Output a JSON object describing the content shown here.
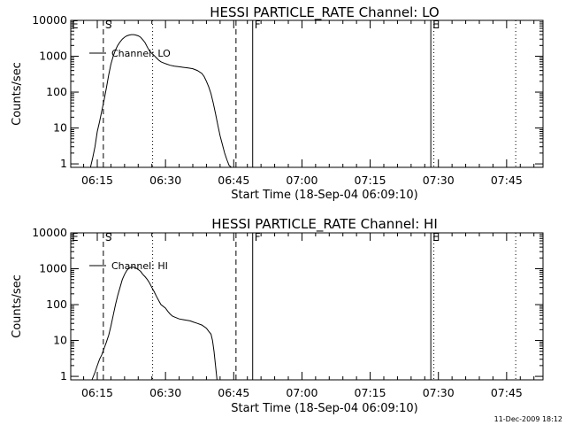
{
  "stamp": "11-Dec-2009 18:12",
  "chart_data": [
    {
      "type": "line",
      "title": "HESSI PARTICLE_RATE Channel: LO",
      "xlabel": "Start Time (18-Sep-04 06:09:10)",
      "ylabel": "Counts/sec",
      "yscale": "log",
      "xlim": [
        "06:09:10",
        "07:53:00"
      ],
      "ylim": [
        0.8,
        10000
      ],
      "xticks": [
        "06:15",
        "06:30",
        "06:45",
        "07:00",
        "07:15",
        "07:30",
        "07:45"
      ],
      "yticks": [
        "1",
        "10",
        "100",
        "1000",
        "10000"
      ],
      "legend": "top-left",
      "series": [
        {
          "name": "Channel: LO",
          "x": [
            "06:13:30",
            "06:14:00",
            "06:14:30",
            "06:15:00",
            "06:15:30",
            "06:16:00",
            "06:16:30",
            "06:17:00",
            "06:17:30",
            "06:18:00",
            "06:18:30",
            "06:19:00",
            "06:19:30",
            "06:20:00",
            "06:20:30",
            "06:21:00",
            "06:21:30",
            "06:22:00",
            "06:22:30",
            "06:23:00",
            "06:23:30",
            "06:24:00",
            "06:24:30",
            "06:25:00",
            "06:25:30",
            "06:26:00",
            "06:26:30",
            "06:27:00",
            "06:27:30",
            "06:28:00",
            "06:28:30",
            "06:29:00",
            "06:30:00",
            "06:31:00",
            "06:32:00",
            "06:33:00",
            "06:34:00",
            "06:35:00",
            "06:36:00",
            "06:37:00",
            "06:38:00",
            "06:38:30",
            "06:39:00",
            "06:39:30",
            "06:40:00",
            "06:40:30",
            "06:41:00",
            "06:41:30",
            "06:42:00",
            "06:42:30",
            "06:43:00",
            "06:43:30",
            "06:44:00",
            "06:44:30"
          ],
          "values": [
            0.8,
            1.5,
            3,
            8,
            15,
            30,
            60,
            130,
            300,
            600,
            1000,
            1500,
            2000,
            2500,
            3000,
            3400,
            3700,
            3900,
            4000,
            4000,
            3900,
            3700,
            3400,
            2900,
            2400,
            1800,
            1400,
            1200,
            1050,
            900,
            780,
            700,
            620,
            560,
            530,
            510,
            490,
            470,
            450,
            400,
            330,
            270,
            200,
            140,
            90,
            50,
            25,
            12,
            6,
            3.5,
            2,
            1.3,
            0.9,
            0.8
          ]
        }
      ],
      "markers": [
        {
          "label": "S",
          "time": "06:16:20",
          "style": "dashed"
        },
        {
          "label": "",
          "time": "06:27:10",
          "style": "dotted"
        },
        {
          "label": "",
          "time": "06:45:30",
          "style": "dashed"
        },
        {
          "label": "F",
          "time": "06:49:10",
          "style": "solid"
        },
        {
          "label": "E",
          "time": "07:28:20",
          "style": "solid"
        },
        {
          "label": "",
          "time": "07:29:00",
          "style": "dotted"
        },
        {
          "label": "",
          "time": "07:47:00",
          "style": "dotted"
        }
      ],
      "corner_letter": "E"
    },
    {
      "type": "line",
      "title": "HESSI PARTICLE_RATE Channel: HI",
      "xlabel": "Start Time (18-Sep-04 06:09:10)",
      "ylabel": "Counts/sec",
      "yscale": "log",
      "xlim": [
        "06:09:10",
        "07:53:00"
      ],
      "ylim": [
        0.8,
        10000
      ],
      "xticks": [
        "06:15",
        "06:30",
        "06:45",
        "07:00",
        "07:15",
        "07:30",
        "07:45"
      ],
      "yticks": [
        "1",
        "10",
        "100",
        "1000",
        "10000"
      ],
      "legend": "top-left",
      "series": [
        {
          "name": "Channel: HI",
          "x": [
            "06:13:50",
            "06:14:30",
            "06:15:00",
            "06:15:30",
            "06:16:00",
            "06:16:30",
            "06:17:00",
            "06:17:30",
            "06:18:00",
            "06:18:30",
            "06:19:00",
            "06:19:30",
            "06:20:00",
            "06:20:30",
            "06:21:00",
            "06:21:30",
            "06:22:00",
            "06:22:30",
            "06:23:00",
            "06:23:30",
            "06:24:00",
            "06:24:30",
            "06:25:00",
            "06:25:30",
            "06:26:00",
            "06:26:30",
            "06:27:00",
            "06:27:30",
            "06:28:00",
            "06:28:30",
            "06:29:00",
            "06:30:00",
            "06:30:30",
            "06:31:00",
            "06:31:30",
            "06:32:00",
            "06:33:00",
            "06:34:00",
            "06:35:00",
            "06:35:30",
            "06:36:00",
            "06:37:00",
            "06:38:00",
            "06:39:00",
            "06:39:30",
            "06:40:00",
            "06:40:20",
            "06:40:40",
            "06:41:00",
            "06:41:20"
          ],
          "values": [
            0.8,
            1.3,
            2,
            3,
            4,
            6,
            9,
            14,
            25,
            50,
            100,
            180,
            300,
            500,
            700,
            900,
            1050,
            1100,
            1100,
            1050,
            950,
            850,
            700,
            600,
            500,
            400,
            300,
            230,
            170,
            130,
            100,
            80,
            65,
            55,
            48,
            45,
            40,
            38,
            36,
            35,
            33,
            30,
            27,
            22,
            18,
            15,
            10,
            5,
            2,
            0.8
          ]
        }
      ],
      "markers": [
        {
          "label": "S",
          "time": "06:16:20",
          "style": "dashed"
        },
        {
          "label": "",
          "time": "06:27:10",
          "style": "dotted"
        },
        {
          "label": "",
          "time": "06:45:30",
          "style": "dashed"
        },
        {
          "label": "F",
          "time": "06:49:10",
          "style": "solid"
        },
        {
          "label": "E",
          "time": "07:28:20",
          "style": "solid"
        },
        {
          "label": "",
          "time": "07:29:00",
          "style": "dotted"
        },
        {
          "label": "",
          "time": "07:47:00",
          "style": "dotted"
        }
      ],
      "corner_letter": "E"
    }
  ]
}
